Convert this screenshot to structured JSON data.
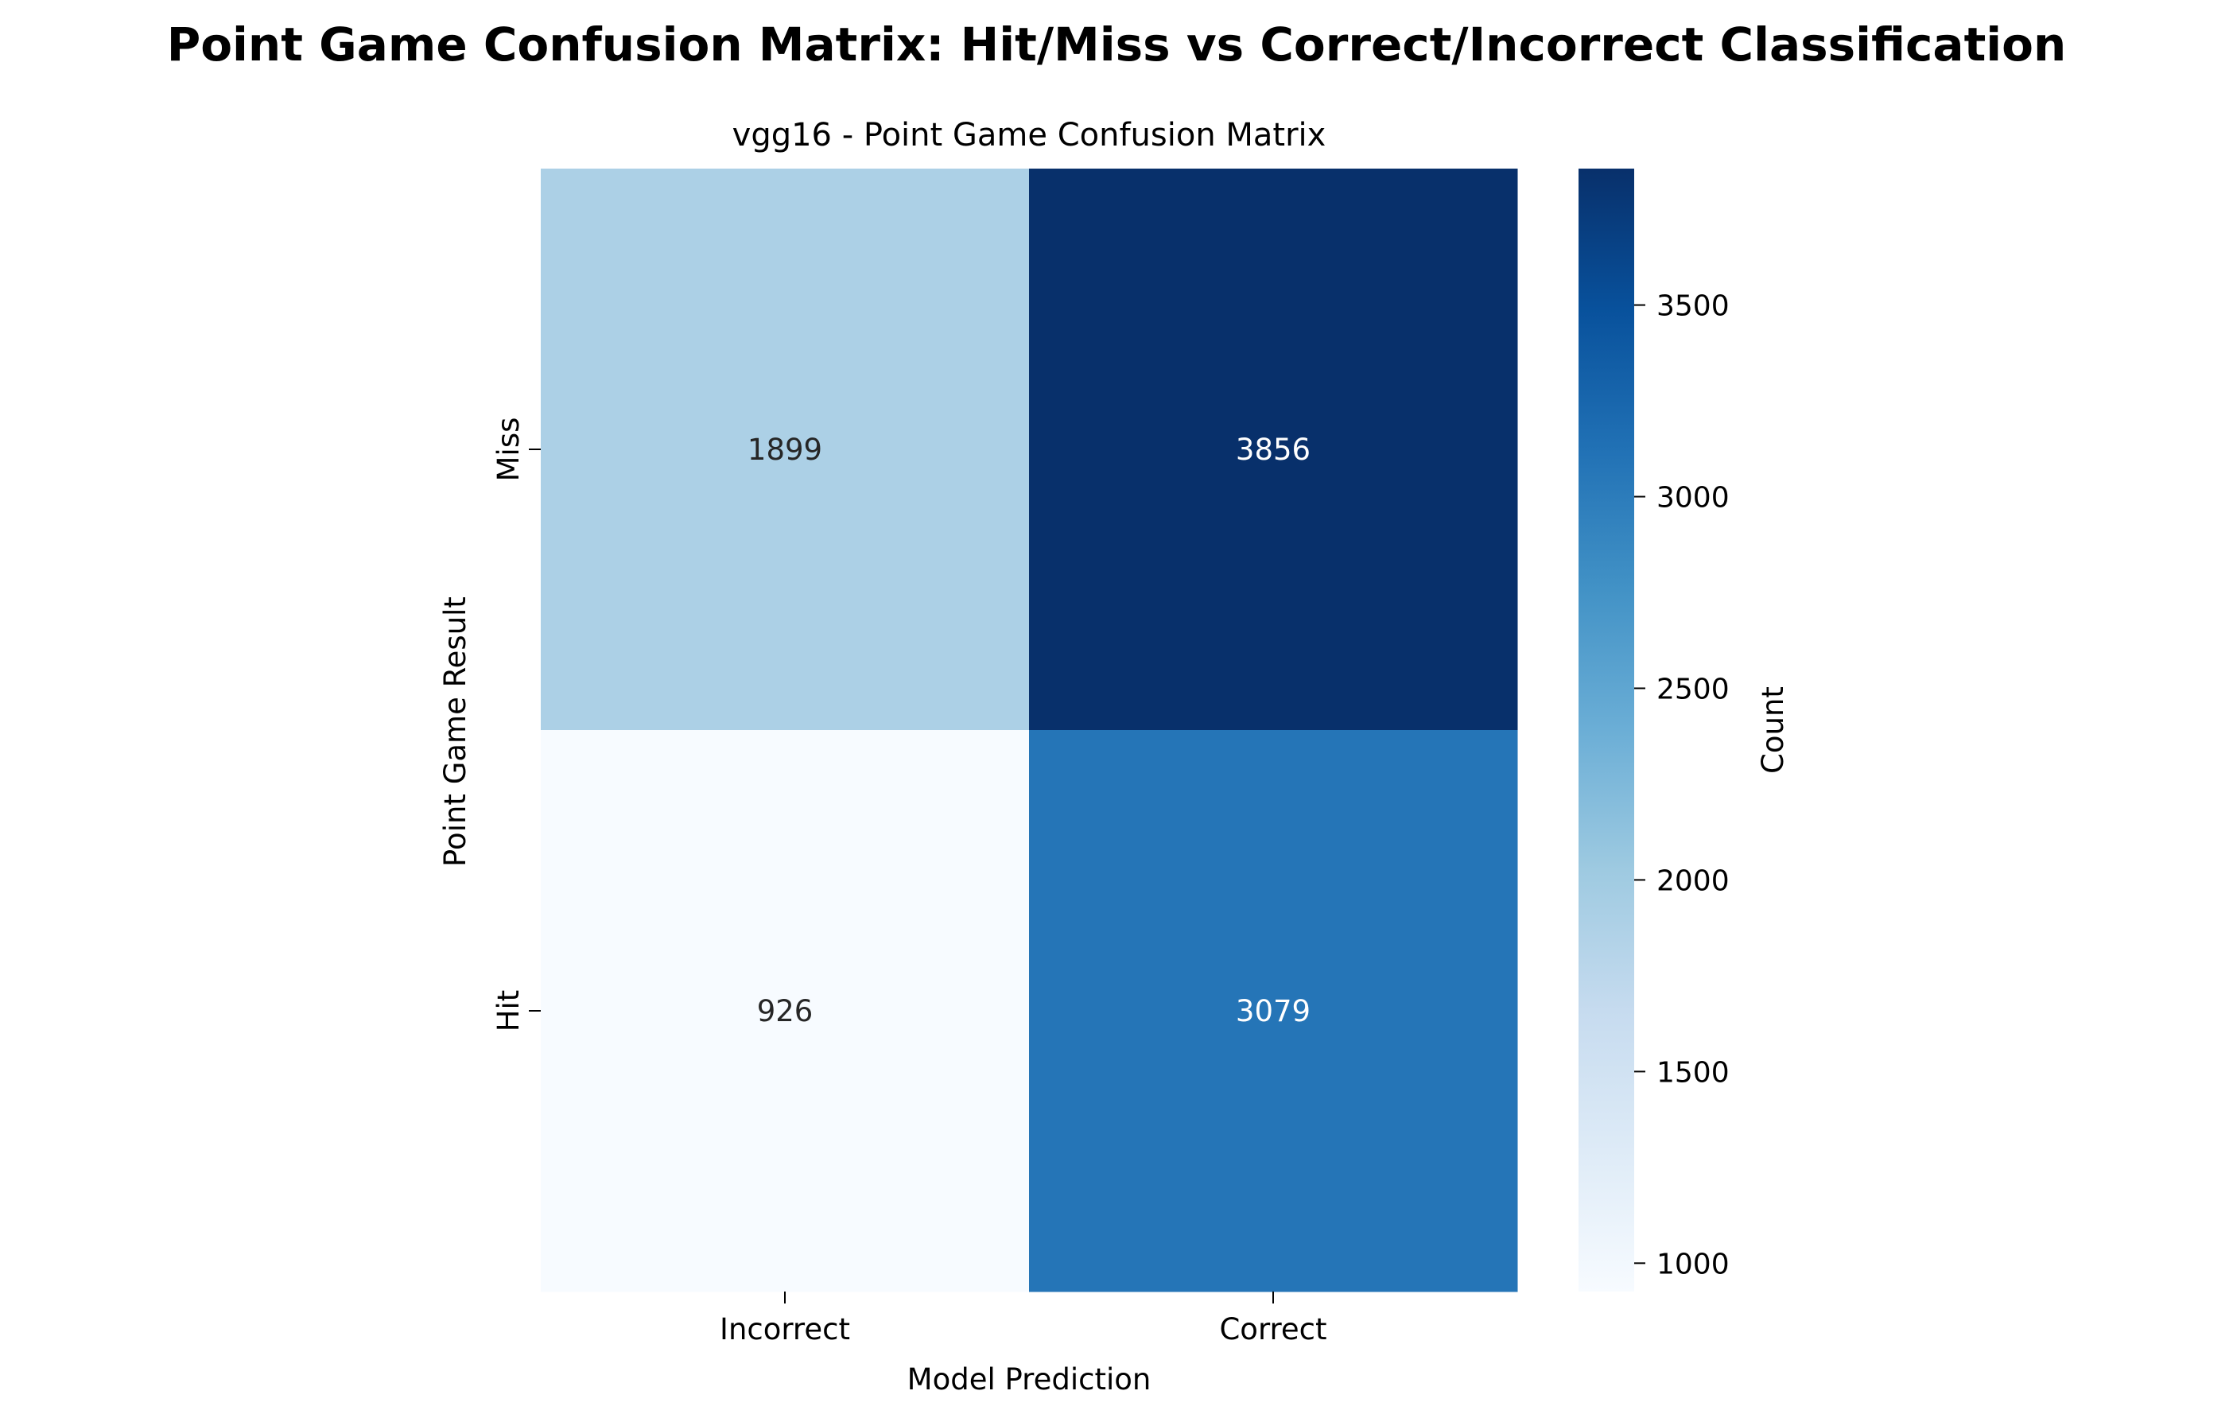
{
  "figure": {
    "suptitle": "Point Game Confusion Matrix: Hit/Miss vs Correct/Incorrect Classification"
  },
  "chart_data": {
    "type": "heatmap",
    "title": "vgg16 - Point Game Confusion Matrix",
    "xlabel": "Model Prediction",
    "ylabel": "Point Game Result",
    "x_categories": [
      "Incorrect",
      "Correct"
    ],
    "y_categories": [
      "Miss",
      "Hit"
    ],
    "values": [
      [
        1899,
        3856
      ],
      [
        926,
        3079
      ]
    ],
    "colorbar": {
      "label": "Count",
      "range": [
        926,
        3856
      ],
      "ticks": [
        1000,
        1500,
        2000,
        2500,
        3000,
        3500
      ],
      "colormap": "Blues"
    }
  }
}
